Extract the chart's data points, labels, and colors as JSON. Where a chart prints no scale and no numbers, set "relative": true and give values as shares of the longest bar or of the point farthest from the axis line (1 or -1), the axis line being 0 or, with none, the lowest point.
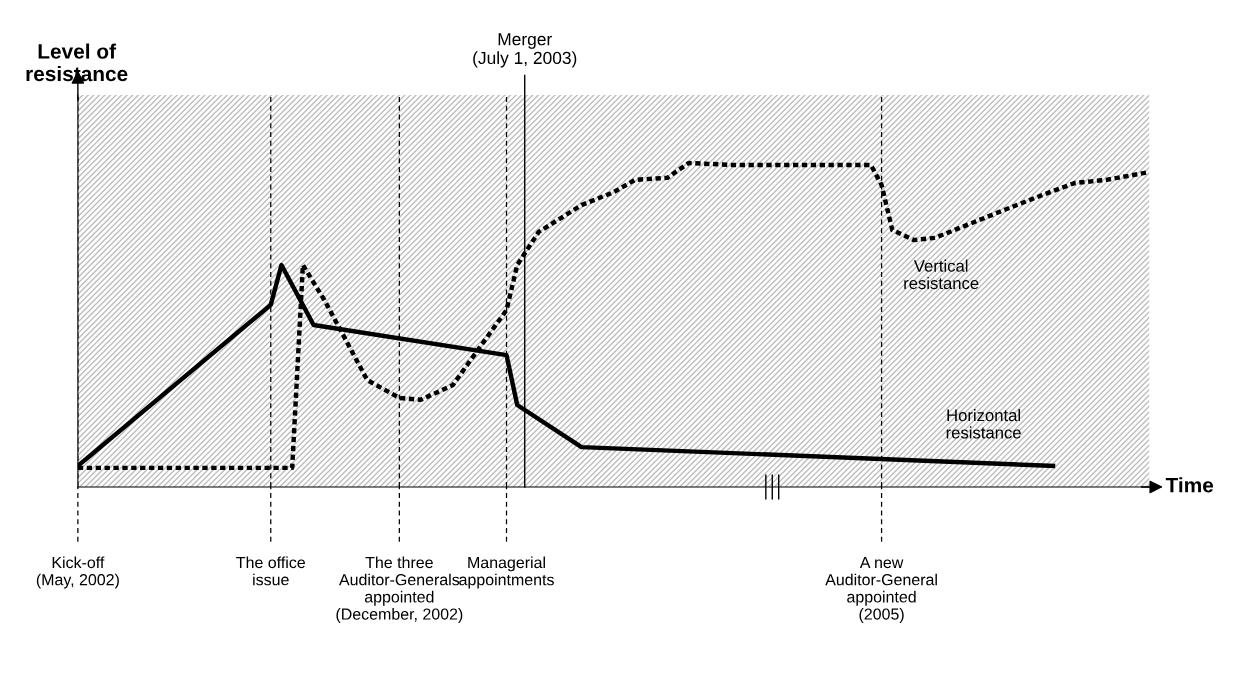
{
  "chart_data": {
    "type": "line",
    "relative": true,
    "tick_labels": "x",
    "grid": "x",
    "marker": "none",
    "ylabel": "Level of resistance",
    "xlabel": "Time",
    "categories": [
      "Kick-off\n(May, 2002)",
      null,
      null,
      null,
      null,
      null,
      null,
      null,
      null,
      null,
      null,
      null,
      null,
      null,
      null,
      null,
      null,
      null,
      "The office\nissue",
      null,
      null,
      null,
      null,
      null,
      null,
      null,
      null,
      null,
      null,
      null,
      "The three\nAuditor-Generals\nappointed\n(December, 2002)",
      null,
      null,
      null,
      null,
      null,
      null,
      null,
      null,
      null,
      "Managerial\nappointments",
      null,
      null,
      null,
      null,
      null,
      null,
      null,
      null,
      null,
      null,
      null,
      null,
      null,
      null,
      null,
      null,
      null,
      null,
      null,
      null,
      null,
      null,
      null,
      null,
      null,
      null,
      null,
      null,
      null,
      null,
      null,
      null,
      null,
      null,
      "A new\nAuditor-General\nappointed\n(2005)",
      null,
      null,
      null,
      null,
      null,
      null,
      null,
      null,
      null,
      null,
      null,
      null,
      null,
      null,
      null,
      null,
      null,
      null,
      null,
      null,
      null,
      null,
      null,
      null,
      null
    ],
    "series": [
      {
        "name": "Horizontal resistance",
        "color": "#000000",
        "line_style": "solid",
        "values": [
          0.065,
          null,
          null,
          null,
          null,
          null,
          null,
          null,
          null,
          null,
          null,
          null,
          null,
          null,
          null,
          null,
          null,
          null,
          0.562,
          0.685,
          null,
          null,
          0.5,
          null,
          null,
          null,
          null,
          null,
          null,
          null,
          null,
          null,
          null,
          null,
          null,
          null,
          null,
          null,
          null,
          null,
          0.407,
          0.253,
          null,
          null,
          null,
          null,
          null,
          0.123,
          null,
          null,
          null,
          null,
          null,
          null,
          null,
          null,
          null,
          null,
          null,
          null,
          null,
          null,
          null,
          null,
          null,
          null,
          null,
          null,
          null,
          null,
          null,
          null,
          null,
          null,
          null,
          null,
          null,
          null,
          null,
          null,
          null,
          null,
          null,
          null,
          null,
          null,
          null,
          null,
          null,
          null,
          null,
          0.065,
          null,
          null,
          null,
          null,
          null,
          null,
          null,
          null,
          null
        ]
      },
      {
        "name": "Vertical resistance",
        "color": "#000000",
        "line_style": "dotted",
        "values": [
          0.059,
          null,
          null,
          null,
          null,
          null,
          null,
          null,
          null,
          null,
          null,
          null,
          null,
          null,
          null,
          null,
          null,
          null,
          null,
          null,
          0.059,
          0.685,
          null,
          0.577,
          null,
          0.454,
          null,
          0.33,
          null,
          null,
          0.275,
          null,
          0.269,
          null,
          null,
          0.315,
          null,
          null,
          0.454,
          null,
          0.546,
          0.685,
          null,
          0.787,
          null,
          null,
          null,
          0.87,
          null,
          null,
          0.91,
          null,
          0.948,
          null,
          null,
          0.954,
          null,
          1.0,
          null,
          null,
          null,
          0.994,
          null,
          null,
          null,
          null,
          null,
          null,
          null,
          null,
          null,
          null,
          null,
          null,
          0.994,
          0.932,
          0.793,
          null,
          0.762,
          null,
          0.769,
          null,
          null,
          0.809,
          null,
          null,
          0.849,
          null,
          null,
          null,
          0.901,
          null,
          null,
          0.938,
          null,
          null,
          0.948,
          null,
          null,
          null,
          0.972
        ]
      }
    ],
    "annotations": [
      "Merger\n(July 1, 2003)"
    ]
  }
}
